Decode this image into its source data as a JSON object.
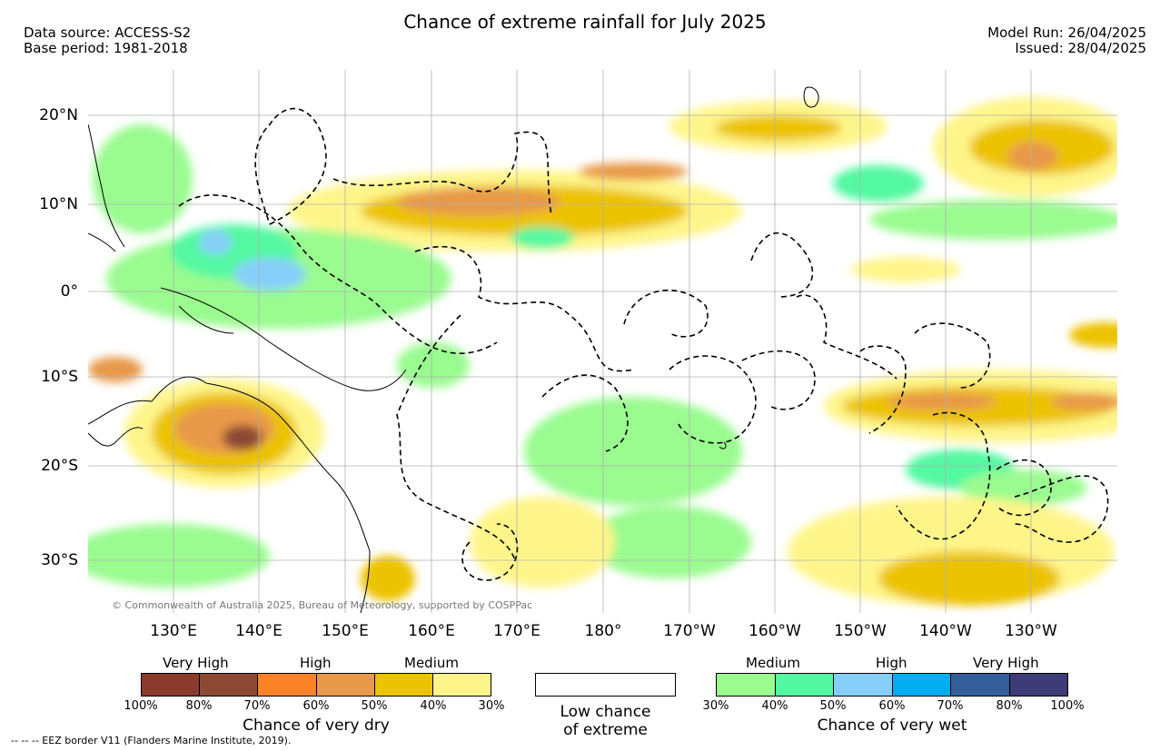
{
  "header": {
    "title": "Chance of extreme rainfall for July 2025",
    "data_source": "Data source: ACCESS-S2",
    "base_period": "Base period: 1981-2018",
    "model_run": "Model Run: 26/04/2025",
    "issued": "Issued: 28/04/2025"
  },
  "map": {
    "lat_labels": [
      "20°N",
      "10°N",
      "0°",
      "10°S",
      "20°S",
      "30°S"
    ],
    "lon_labels": [
      "130°E",
      "140°E",
      "150°E",
      "160°E",
      "170°E",
      "180°",
      "170°W",
      "160°W",
      "150°W",
      "140°W",
      "130°W"
    ],
    "copyright": "© Commonwealth of Australia 2025, Bureau of Meteorology, supported by COSPPac"
  },
  "legend": {
    "dry": {
      "categories": [
        "Very High",
        "High",
        "Medium"
      ],
      "ticks": [
        "100%",
        "80%",
        "70%",
        "60%",
        "50%",
        "40%",
        "30%"
      ],
      "colors": [
        "#8b3a2e",
        "#8c4a35",
        "#fb8226",
        "#e8994a",
        "#ecc300",
        "#fef58a"
      ],
      "title": "Chance of very dry"
    },
    "low": {
      "line1": "Low chance",
      "line2": "of extreme"
    },
    "wet": {
      "categories": [
        "Medium",
        "High",
        "Very High"
      ],
      "ticks": [
        "30%",
        "40%",
        "50%",
        "60%",
        "70%",
        "80%",
        "100%"
      ],
      "colors": [
        "#9afb8f",
        "#52f8a1",
        "#86cefa",
        "#00aef0",
        "#335e9a",
        "#3d3c77"
      ],
      "title": "Chance of very wet"
    },
    "eez_note": "--  --  -- EEZ border V11 (Flanders Marine Institute, 2019)."
  }
}
